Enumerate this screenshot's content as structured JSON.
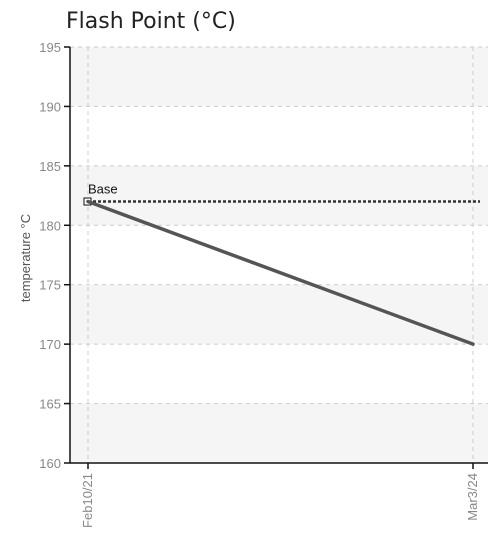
{
  "chart_data": {
    "type": "line",
    "title": "Flash Point (°C)",
    "ylabel": "temperature °C",
    "xlabel": "",
    "ylim": [
      160,
      195
    ],
    "yticks": [
      160,
      165,
      170,
      175,
      180,
      185,
      190,
      195
    ],
    "categories": [
      "Feb10/21",
      "Mar3/24"
    ],
    "series": [
      {
        "values": [
          182,
          170
        ],
        "color": "#555555"
      }
    ],
    "reference_line": {
      "label": "Base",
      "value": 182,
      "color": "#333333"
    },
    "grid": true,
    "band_color": "#f5f5f5"
  }
}
